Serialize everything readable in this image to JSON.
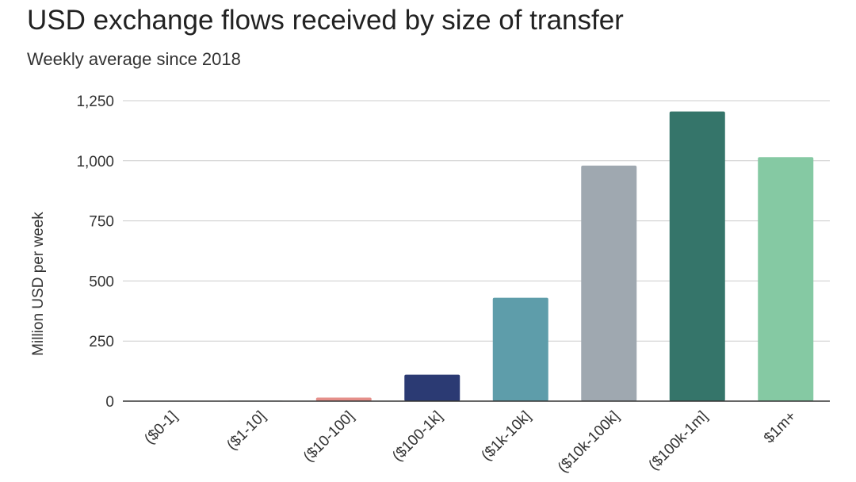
{
  "chart_data": {
    "type": "bar",
    "title": "USD exchange flows received by size of transfer",
    "subtitle": "Weekly average since 2018",
    "xlabel": "",
    "ylabel": "Million USD per week",
    "ylim": [
      0,
      1250
    ],
    "yticks": [
      0,
      250,
      500,
      750,
      1000,
      1250
    ],
    "ytick_labels": [
      "0",
      "250",
      "500",
      "750",
      "1,000",
      "1,250"
    ],
    "grid": true,
    "legend": "none",
    "categories": [
      "($0-1]",
      "($1-10]",
      "($10-100]",
      "($100-1k]",
      "($1k-10k]",
      "($10k-100k]",
      "($100k-1m]",
      "$1m+"
    ],
    "values": [
      0.3,
      1.5,
      15,
      110,
      430,
      980,
      1205,
      1015
    ],
    "colors": [
      "#e8e8e8",
      "#9fb2b8",
      "#e58f8a",
      "#2b3a73",
      "#5e9daa",
      "#9fa8b0",
      "#35756a",
      "#85c9a3"
    ]
  },
  "colors": {
    "gridline": "#cccccc",
    "baseline": "#333333",
    "text": "#333333"
  }
}
